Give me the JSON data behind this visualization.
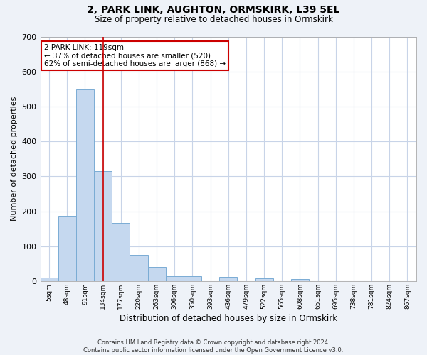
{
  "title1": "2, PARK LINK, AUGHTON, ORMSKIRK, L39 5EL",
  "title2": "Size of property relative to detached houses in Ormskirk",
  "xlabel": "Distribution of detached houses by size in Ormskirk",
  "ylabel": "Number of detached properties",
  "categories": [
    "5sqm",
    "48sqm",
    "91sqm",
    "134sqm",
    "177sqm",
    "220sqm",
    "263sqm",
    "306sqm",
    "350sqm",
    "393sqm",
    "436sqm",
    "479sqm",
    "522sqm",
    "565sqm",
    "608sqm",
    "651sqm",
    "695sqm",
    "738sqm",
    "781sqm",
    "824sqm",
    "867sqm"
  ],
  "values": [
    10,
    187,
    548,
    315,
    167,
    76,
    40,
    15,
    15,
    0,
    12,
    0,
    8,
    0,
    5,
    0,
    0,
    0,
    0,
    0,
    0
  ],
  "bar_color": "#c5d8ef",
  "bar_edge_color": "#7aacd4",
  "grid_color": "#c8d4e8",
  "vline_x": 3,
  "vline_color": "#cc0000",
  "annotation_text": "2 PARK LINK: 119sqm\n← 37% of detached houses are smaller (520)\n62% of semi-detached houses are larger (868) →",
  "annotation_box_color": "#ffffff",
  "annotation_box_edge_color": "#cc0000",
  "ylim": [
    0,
    700
  ],
  "yticks": [
    0,
    100,
    200,
    300,
    400,
    500,
    600,
    700
  ],
  "footer": "Contains HM Land Registry data © Crown copyright and database right 2024.\nContains public sector information licensed under the Open Government Licence v3.0.",
  "bg_color": "#eef2f8",
  "plot_bg_color": "#ffffff"
}
